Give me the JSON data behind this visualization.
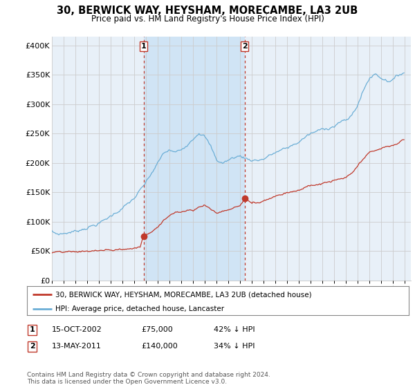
{
  "title": "30, BERWICK WAY, HEYSHAM, MORECAMBE, LA3 2UB",
  "subtitle": "Price paid vs. HM Land Registry's House Price Index (HPI)",
  "yticks": [
    0,
    50000,
    100000,
    150000,
    200000,
    250000,
    300000,
    350000,
    400000
  ],
  "ytick_labels": [
    "£0",
    "£50K",
    "£100K",
    "£150K",
    "£200K",
    "£250K",
    "£300K",
    "£350K",
    "£400K"
  ],
  "xlim_start": 1995.0,
  "xlim_end": 2025.5,
  "ylim_min": 0,
  "ylim_max": 415000,
  "hpi_color": "#6baed6",
  "price_color": "#c0392b",
  "marker_color": "#c0392b",
  "sale1_x": 2002.79,
  "sale1_y": 75000,
  "sale1_label": "1",
  "sale2_x": 2011.37,
  "sale2_y": 140000,
  "sale2_label": "2",
  "vline_color": "#c0392b",
  "grid_color": "#cccccc",
  "background_color": "#e8f0f8",
  "shade_color": "#d0e4f5",
  "legend_line1": "30, BERWICK WAY, HEYSHAM, MORECAMBE, LA3 2UB (detached house)",
  "legend_line2": "HPI: Average price, detached house, Lancaster",
  "table_row1": [
    "1",
    "15-OCT-2002",
    "£75,000",
    "42% ↓ HPI"
  ],
  "table_row2": [
    "2",
    "13-MAY-2011",
    "£140,000",
    "34% ↓ HPI"
  ],
  "footnote": "Contains HM Land Registry data © Crown copyright and database right 2024.\nThis data is licensed under the Open Government Licence v3.0."
}
